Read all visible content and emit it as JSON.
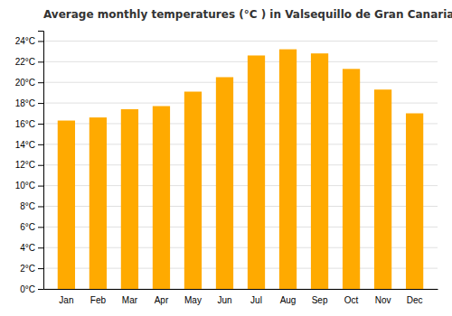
{
  "chart_data": {
    "type": "bar",
    "title": "Average monthly temperatures (°C ) in Valsequillo de Gran Canaria",
    "categories": [
      "Jan",
      "Feb",
      "Mar",
      "Apr",
      "May",
      "Jun",
      "Jul",
      "Aug",
      "Sep",
      "Oct",
      "Nov",
      "Dec"
    ],
    "values": [
      16.3,
      16.6,
      17.4,
      17.7,
      19.1,
      20.5,
      22.6,
      23.2,
      22.8,
      21.3,
      19.3,
      17.0
    ],
    "color": "#FFAA00",
    "ylim": [
      0,
      25
    ],
    "yticks": [
      {
        "value": 0,
        "label": "0°C"
      },
      {
        "value": 2,
        "label": "2°C"
      },
      {
        "value": 4,
        "label": "4°C"
      },
      {
        "value": 6,
        "label": "6°C"
      },
      {
        "value": 8,
        "label": "8°C"
      },
      {
        "value": 10,
        "label": "10°C"
      },
      {
        "value": 12,
        "label": "12°C"
      },
      {
        "value": 14,
        "label": "14°C"
      },
      {
        "value": 16,
        "label": "16°C"
      },
      {
        "value": 18,
        "label": "18°C"
      },
      {
        "value": 20,
        "label": "20°C"
      },
      {
        "value": 22,
        "label": "22°C"
      },
      {
        "value": 24,
        "label": "24°C"
      }
    ],
    "grid": true
  }
}
